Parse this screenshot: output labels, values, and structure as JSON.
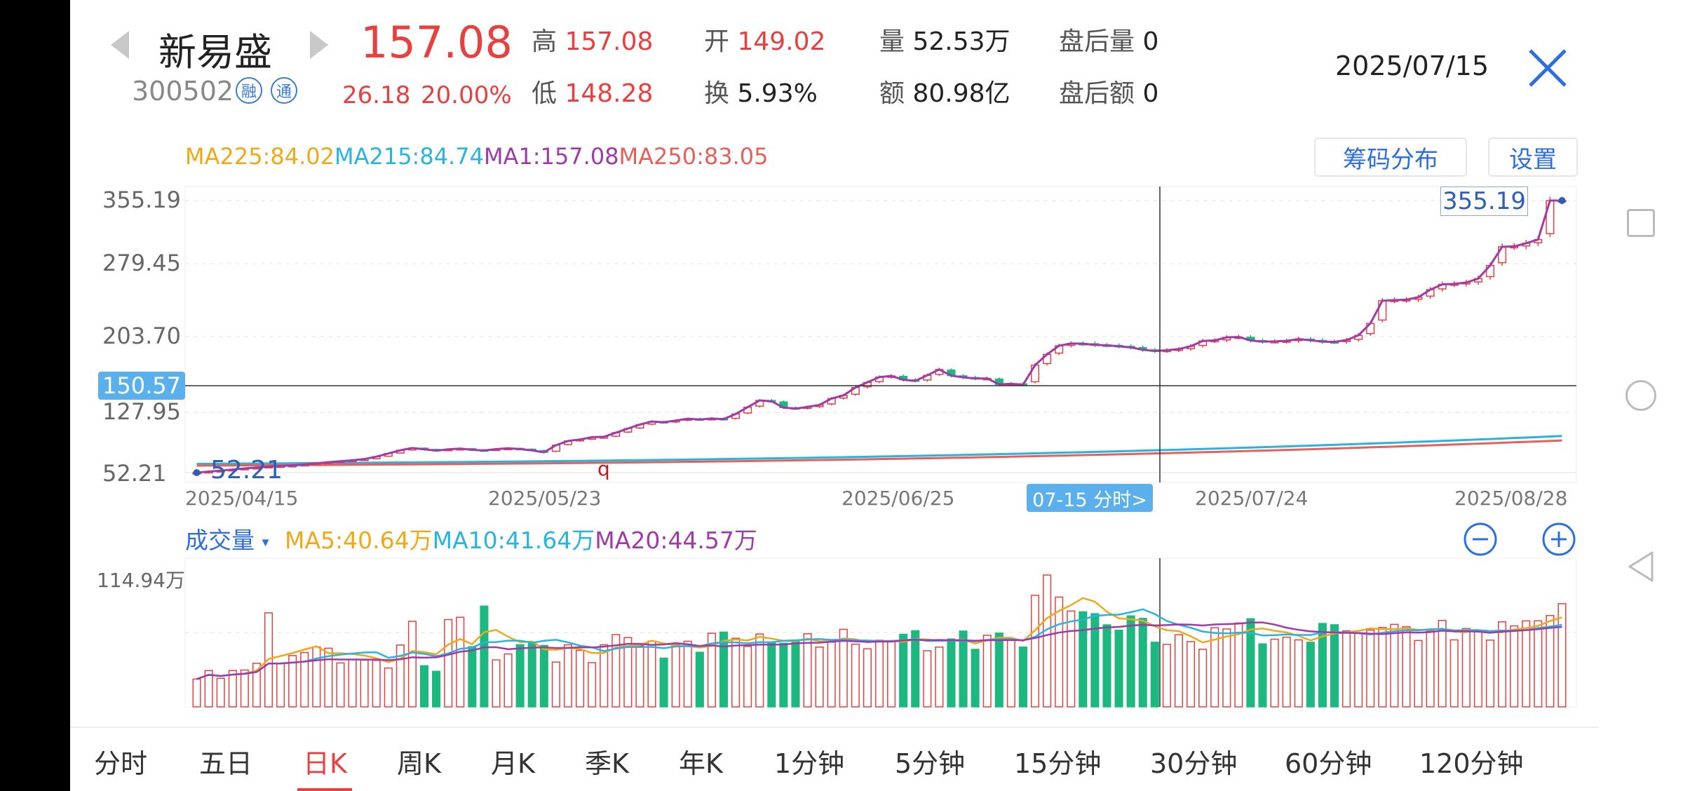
{
  "header": {
    "name": "新易盛",
    "code": "300502",
    "tags": [
      "融",
      "通"
    ],
    "price": "157.08",
    "change": "26.18",
    "change_pct": "20.00%",
    "date": "2025/07/15",
    "quote": [
      {
        "label": "高",
        "value": "157.08",
        "color": "red"
      },
      {
        "label": "开",
        "value": "149.02",
        "color": "red"
      },
      {
        "label": "量",
        "value": "52.53万",
        "color": "dark"
      },
      {
        "label": "盘后量",
        "value": "0",
        "color": "dark"
      },
      {
        "label": "低",
        "value": "148.28",
        "color": "red"
      },
      {
        "label": "换",
        "value": "5.93%",
        "color": "dark"
      },
      {
        "label": "额",
        "value": "80.98亿",
        "color": "dark"
      },
      {
        "label": "盘后额",
        "value": "0",
        "color": "dark"
      }
    ]
  },
  "buttons": {
    "chips": "筹码分布",
    "settings": "设置"
  },
  "ma": [
    {
      "text": "MA225:84.02",
      "color": "#f0a818"
    },
    {
      "text": "MA215:84.74",
      "color": "#27b4e0"
    },
    {
      "text": "MA1:157.08",
      "color": "#a03aa8"
    },
    {
      "text": "MA250:83.05",
      "color": "#e8605a"
    }
  ],
  "price_axis": [
    "355.19",
    "279.45",
    "203.70",
    "127.95",
    "52.21"
  ],
  "crosshair": {
    "price": "150.57",
    "date_label": "07-15 分时>"
  },
  "markers": {
    "high": "355.19",
    "low": "52.21",
    "q": "q"
  },
  "x_labels": [
    "2025/04/15",
    "2025/05/23",
    "2025/06/25",
    "2025/07/24",
    "2025/08/28"
  ],
  "volume": {
    "title": "成交量",
    "dropdown": "▾",
    "ma": [
      {
        "text": "MA5:40.64万",
        "color": "#f0a818"
      },
      {
        "text": "MA10:41.64万",
        "color": "#27b4e0"
      },
      {
        "text": "MA20:44.57万",
        "color": "#a03aa8"
      }
    ],
    "max_label": "114.94万"
  },
  "tabs": [
    "分时",
    "五日",
    "日K",
    "周K",
    "月K",
    "季K",
    "年K",
    "1分钟",
    "5分钟",
    "15分钟",
    "30分钟",
    "60分钟",
    "120分钟"
  ],
  "active_tab": "日K",
  "colors": {
    "up": "#e8403f",
    "down": "#1cb880",
    "accent": "#2d6ee0",
    "ma1": "#a03aa8",
    "ma_orange": "#e8605a",
    "ma_cyan": "#27b4e0"
  },
  "chart_data": {
    "type": "candlestick",
    "ylim": [
      52.21,
      355.19
    ],
    "closes": [
      52.2,
      53.4,
      54.5,
      55.6,
      56.9,
      57.9,
      59.0,
      59.6,
      60.2,
      61.3,
      62.6,
      63.8,
      64.9,
      66.0,
      67.3,
      70.0,
      73.5,
      77.1,
      79.6,
      78.2,
      76.7,
      78.2,
      79.0,
      77.6,
      76.9,
      78.4,
      79.3,
      78.5,
      77.0,
      74.8,
      82.8,
      87.5,
      89.1,
      91.6,
      92.1,
      96.7,
      101.3,
      105.7,
      109.1,
      108.3,
      110.2,
      112.2,
      111.4,
      112.5,
      111.8,
      117.5,
      125.1,
      132.6,
      131.7,
      124.6,
      123.5,
      125.4,
      127.6,
      134.7,
      138.2,
      146.9,
      152.7,
      158.6,
      159.9,
      155.6,
      154.4,
      160.6,
      167.1,
      160.2,
      158.3,
      157.0,
      157.1,
      150.5,
      151.1,
      150.2,
      171.9,
      183.9,
      193.5,
      196.0,
      195.9,
      194.4,
      194.0,
      192.9,
      191.7,
      189.0,
      187.7,
      188.5,
      189.8,
      193.0,
      198.8,
      199.5,
      202.8,
      203.3,
      199.4,
      198.1,
      198.3,
      198.9,
      201.0,
      199.6,
      198.0,
      197.8,
      199.8,
      205.1,
      218.4,
      243.6,
      244.3,
      244.8,
      247.5,
      255.9,
      261.9,
      262.4,
      263.9,
      268.3,
      282.9,
      303.7,
      304.1,
      307.6,
      311.8,
      355.2,
      355.2
    ],
    "volume_max": 114.94,
    "volumes": [
      21.9,
      28.6,
      22.5,
      28.6,
      29.0,
      34.3,
      74.1,
      34.3,
      40.4,
      42.8,
      47.2,
      46.2,
      34.6,
      37.4,
      36.8,
      36.6,
      30.6,
      48.7,
      67.4,
      32.4,
      28.0,
      68.8,
      70.6,
      47.4,
      79.4,
      37.0,
      41.7,
      49.0,
      50.5,
      48.4,
      35.3,
      48.9,
      44.5,
      34.8,
      48.9,
      56.9,
      54.6,
      48.2,
      51.8,
      38.4,
      48.9,
      51.7,
      43.0,
      58.0,
      58.9,
      54.0,
      47.6,
      57.4,
      51.0,
      50.1,
      52.7,
      57.6,
      47.1,
      51.0,
      61.1,
      49.4,
      45.7,
      52.5,
      51.6,
      57.2,
      60.0,
      44.2,
      47.1,
      53.5,
      59.7,
      45.3,
      56.4,
      58.1,
      52.6,
      47.1,
      87.9,
      103.9,
      86.5,
      75.5,
      74.9,
      73.4,
      64.6,
      60.4,
      71.7,
      69.7,
      50.9,
      49.2,
      56.8,
      51.4,
      45.4,
      62.3,
      61.4,
      66.1,
      69.4,
      49.6,
      53.3,
      54.9,
      52.8,
      50.9,
      65.7,
      64.7,
      59.9,
      58.2,
      60.5,
      62.6,
      65.0,
      63.1,
      52.3,
      59.8,
      68.1,
      52.8,
      61.7,
      59.5,
      52.6,
      67.0,
      63.8,
      67.7,
      67.8,
      72.0,
      81.3
    ]
  }
}
